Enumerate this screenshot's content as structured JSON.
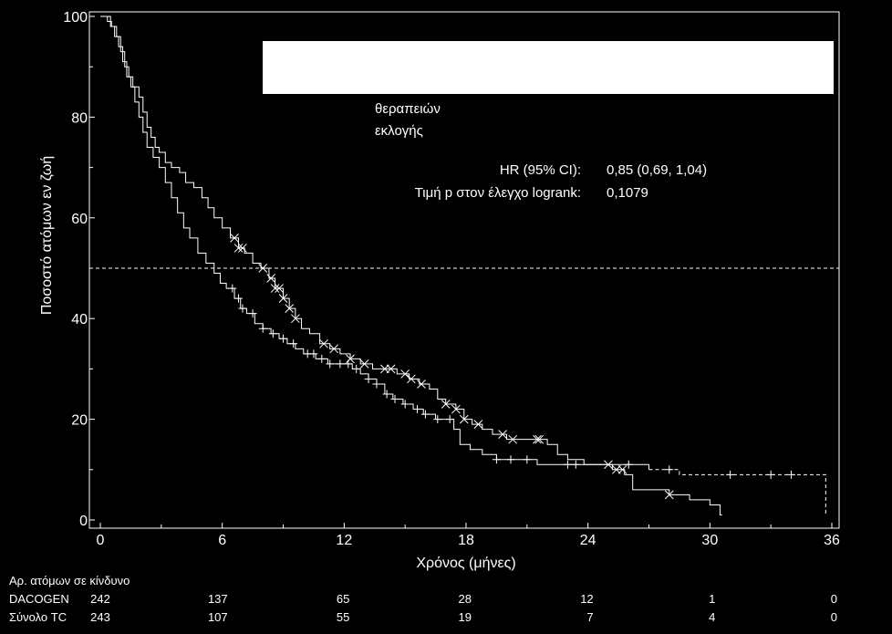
{
  "chart_data": {
    "type": "line",
    "subtype": "kaplan-meier",
    "xlabel": "Χρόνος (μήνες)",
    "ylabel": "Ποσοστό ατόμων εν ζωή",
    "xlim": [
      0,
      36
    ],
    "ylim": [
      0,
      100
    ],
    "x_ticks": [
      0,
      6,
      12,
      18,
      24,
      30,
      36
    ],
    "y_ticks": [
      0,
      20,
      40,
      60,
      80,
      100
    ],
    "reference_line_y": 50,
    "grid": false,
    "colors": {
      "background": "#000000",
      "foreground": "#ffffff"
    },
    "legend_lines": [
      "θεραπειών",
      "εκλογής"
    ],
    "stats": [
      {
        "label": "HR (95% CI):",
        "value": "0,85 (0,69, 1,04)"
      },
      {
        "label": "Τιμή p στον έλεγχο logrank:",
        "value": "0,1079"
      }
    ],
    "series": [
      {
        "name": "DACOGEN",
        "style": "solid",
        "censor_marker": "x",
        "points": [
          [
            0,
            100
          ],
          [
            0.25,
            100
          ],
          [
            0.35,
            99
          ],
          [
            0.55,
            98
          ],
          [
            0.8,
            96
          ],
          [
            1.0,
            93
          ],
          [
            1.2,
            90
          ],
          [
            1.4,
            88
          ],
          [
            1.6,
            86
          ],
          [
            1.9,
            84
          ],
          [
            2.1,
            81
          ],
          [
            2.3,
            78
          ],
          [
            2.5,
            76
          ],
          [
            2.7,
            74
          ],
          [
            2.9,
            73
          ],
          [
            3.2,
            71
          ],
          [
            3.5,
            70
          ],
          [
            3.9,
            69
          ],
          [
            4.2,
            67
          ],
          [
            4.6,
            66
          ],
          [
            5.0,
            64
          ],
          [
            5.3,
            62
          ],
          [
            5.6,
            60
          ],
          [
            6.0,
            58
          ],
          [
            6.4,
            56
          ],
          [
            6.8,
            54
          ],
          [
            7.1,
            53
          ],
          [
            7.5,
            51
          ],
          [
            7.9,
            50
          ],
          [
            8.3,
            48
          ],
          [
            8.6,
            46
          ],
          [
            9.0,
            44
          ],
          [
            9.3,
            42
          ],
          [
            9.6,
            40
          ],
          [
            9.9,
            38
          ],
          [
            10.3,
            37
          ],
          [
            10.8,
            35
          ],
          [
            11.3,
            34
          ],
          [
            11.8,
            33
          ],
          [
            12.3,
            32
          ],
          [
            12.8,
            31
          ],
          [
            13.4,
            30
          ],
          [
            14.0,
            30
          ],
          [
            14.6,
            29
          ],
          [
            15.2,
            28
          ],
          [
            15.7,
            27
          ],
          [
            16.2,
            26
          ],
          [
            16.6,
            24
          ],
          [
            17.0,
            23
          ],
          [
            17.5,
            22
          ],
          [
            17.9,
            20
          ],
          [
            18.3,
            19
          ],
          [
            18.8,
            18
          ],
          [
            19.3,
            17
          ],
          [
            20.0,
            16
          ],
          [
            21.0,
            16
          ],
          [
            22.0,
            15
          ],
          [
            22.5,
            13
          ],
          [
            23.0,
            12
          ],
          [
            23.8,
            11
          ],
          [
            24.5,
            11
          ],
          [
            25.2,
            10
          ],
          [
            25.8,
            9
          ],
          [
            26.2,
            6
          ],
          [
            27.0,
            6
          ],
          [
            28.0,
            5
          ],
          [
            29.0,
            4
          ],
          [
            30.0,
            3
          ],
          [
            30.5,
            1
          ],
          [
            30.6,
            1
          ]
        ],
        "censored_x": [
          6.6,
          6.8,
          7.0,
          8.0,
          8.4,
          8.6,
          8.8,
          9.0,
          9.3,
          9.6,
          11.0,
          11.5,
          12.3,
          13.0,
          14.0,
          14.3,
          15.0,
          15.3,
          15.8,
          17.0,
          17.5,
          17.9,
          18.6,
          19.8,
          20.3,
          21.5,
          21.6,
          25.0,
          25.4,
          25.7,
          28.0
        ]
      },
      {
        "name": "Σύνολο TC",
        "style": "solid-then-dashed",
        "censor_marker": "+",
        "dashed_from_x": 27.0,
        "points": [
          [
            0,
            100
          ],
          [
            0.3,
            100
          ],
          [
            0.5,
            98
          ],
          [
            0.7,
            96
          ],
          [
            0.9,
            94
          ],
          [
            1.1,
            91
          ],
          [
            1.3,
            88
          ],
          [
            1.5,
            86
          ],
          [
            1.7,
            83
          ],
          [
            1.9,
            80
          ],
          [
            2.1,
            77
          ],
          [
            2.3,
            74
          ],
          [
            2.6,
            72
          ],
          [
            2.9,
            70
          ],
          [
            3.2,
            67
          ],
          [
            3.5,
            64
          ],
          [
            3.8,
            61
          ],
          [
            4.1,
            58
          ],
          [
            4.4,
            56
          ],
          [
            4.8,
            53
          ],
          [
            5.2,
            51
          ],
          [
            5.6,
            49
          ],
          [
            5.9,
            47
          ],
          [
            6.2,
            46
          ],
          [
            6.6,
            44
          ],
          [
            6.9,
            42
          ],
          [
            7.2,
            41
          ],
          [
            7.6,
            39
          ],
          [
            8.0,
            38
          ],
          [
            8.4,
            37
          ],
          [
            8.8,
            36
          ],
          [
            9.2,
            35
          ],
          [
            9.6,
            34
          ],
          [
            10.0,
            33
          ],
          [
            10.6,
            32
          ],
          [
            11.2,
            31
          ],
          [
            11.8,
            31
          ],
          [
            12.4,
            30
          ],
          [
            12.8,
            29
          ],
          [
            13.2,
            28
          ],
          [
            13.6,
            27
          ],
          [
            14.0,
            25
          ],
          [
            14.4,
            24
          ],
          [
            14.9,
            23
          ],
          [
            15.4,
            22
          ],
          [
            15.9,
            21
          ],
          [
            16.5,
            20
          ],
          [
            17.0,
            20
          ],
          [
            17.4,
            18
          ],
          [
            17.7,
            15
          ],
          [
            18.2,
            14
          ],
          [
            18.8,
            13
          ],
          [
            19.5,
            12
          ],
          [
            20.5,
            12
          ],
          [
            21.5,
            11
          ],
          [
            22.5,
            11
          ],
          [
            24.0,
            11
          ],
          [
            25.5,
            11
          ],
          [
            27.0,
            10
          ],
          [
            28.5,
            9
          ],
          [
            30.0,
            9
          ],
          [
            32.0,
            9
          ],
          [
            34.0,
            9
          ],
          [
            35.7,
            9
          ],
          [
            35.7,
            1
          ]
        ],
        "censored_x": [
          6.5,
          6.8,
          7.0,
          7.5,
          8.0,
          8.5,
          9.0,
          9.5,
          10.2,
          10.5,
          10.9,
          11.3,
          11.8,
          12.2,
          12.6,
          13.2,
          13.6,
          14.1,
          14.5,
          15.0,
          15.6,
          16.0,
          16.6,
          17.2,
          19.5,
          20.2,
          21.0,
          23.0,
          23.4,
          26.0,
          28.0,
          31.0,
          33.0,
          34.0
        ]
      }
    ]
  },
  "risk_table": {
    "title": "Αρ. ατόμων σε κίνδυνο",
    "time_points": [
      0,
      6,
      12,
      18,
      24,
      30,
      36
    ],
    "rows": [
      {
        "label": "DACOGEN",
        "values": [
          "242",
          "137",
          "65",
          "28",
          "12",
          "1",
          "0"
        ]
      },
      {
        "label": "Σύνολο TC",
        "values": [
          "243",
          "107",
          "55",
          "19",
          "7",
          "4",
          "0"
        ]
      }
    ]
  }
}
